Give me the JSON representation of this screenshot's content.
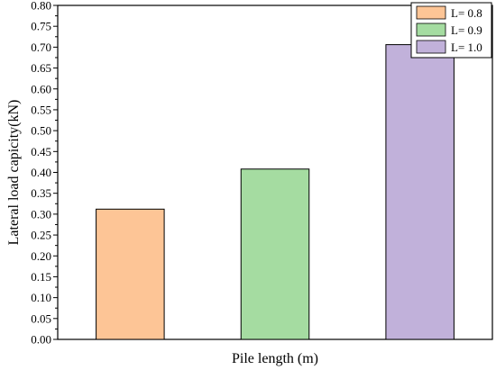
{
  "chart_data": {
    "type": "bar",
    "categories": [
      "L= 0.8",
      "L= 0.9",
      "L= 1.0"
    ],
    "values": [
      0.312,
      0.408,
      0.706
    ],
    "colors": [
      "#fdc596",
      "#a5dca1",
      "#c1b1da"
    ],
    "edge_color": "#000000",
    "xlabel": "Pile length (m)",
    "ylabel": "Lateral load capicity(kN)",
    "ylim": [
      0,
      0.8
    ],
    "ytick_step": 0.05,
    "yticks": [
      "0.00",
      "0.05",
      "0.10",
      "0.15",
      "0.20",
      "0.25",
      "0.30",
      "0.35",
      "0.40",
      "0.45",
      "0.50",
      "0.55",
      "0.60",
      "0.65",
      "0.70",
      "0.75",
      "0.80"
    ],
    "grid": false,
    "legend": {
      "position": "top-right",
      "entries": [
        "L= 0.8",
        "L= 0.9",
        "L= 1.0"
      ]
    }
  }
}
